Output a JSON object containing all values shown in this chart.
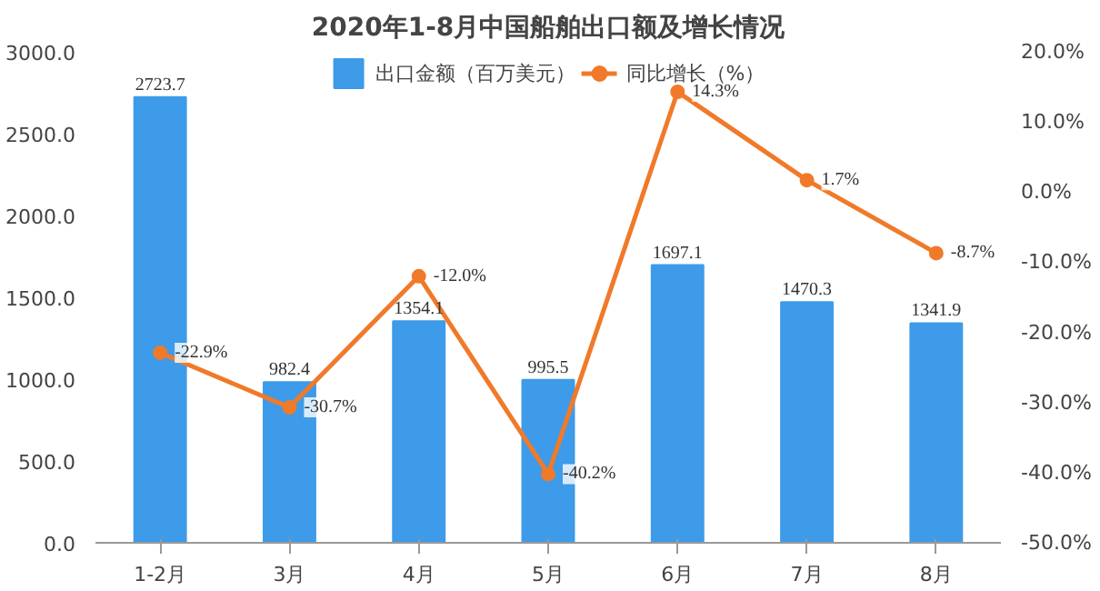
{
  "chart_data": {
    "type": "bar",
    "title": "2020年1-8月中国船舶出口额及增长情况",
    "categories": [
      "1-2月",
      "3月",
      "4月",
      "5月",
      "6月",
      "7月",
      "8月"
    ],
    "series": [
      {
        "name": "出口金额（百万美元）",
        "color": "#3d9be9",
        "values": [
          2723.7,
          982.4,
          1354.1,
          995.5,
          1697.1,
          1470.3,
          1341.9
        ],
        "value_labels": [
          "2723.7",
          "982.4",
          "1354.1",
          "995.5",
          "1697.1",
          "1470.3",
          "1341.9"
        ]
      },
      {
        "name": "同比增长（%）",
        "type": "line",
        "axis": "y2",
        "color": "#f07a2a",
        "values": [
          -22.9,
          -30.7,
          -12.0,
          -40.2,
          14.3,
          1.7,
          -8.7
        ],
        "value_labels": [
          "-22.9%",
          "-30.7%",
          "-12.0%",
          "-40.2%",
          "14.3%",
          "1.7%",
          "-8.7%"
        ]
      }
    ],
    "ylim": [
      0,
      3000
    ],
    "yticks": [
      {
        "value": 0,
        "label": "0.0"
      },
      {
        "value": 500,
        "label": "500.0"
      },
      {
        "value": 1000,
        "label": "1000.0"
      },
      {
        "value": 1500,
        "label": "1500.0"
      },
      {
        "value": 2000,
        "label": "2000.0"
      },
      {
        "value": 2500,
        "label": "2500.0"
      },
      {
        "value": 3000,
        "label": "3000.0"
      }
    ],
    "y2lim": [
      -50,
      20
    ],
    "y2ticks": [
      {
        "value": -50,
        "label": "-50.0%"
      },
      {
        "value": -40,
        "label": "-40.0%"
      },
      {
        "value": -30,
        "label": "-30.0%"
      },
      {
        "value": -20,
        "label": "-20.0%"
      },
      {
        "value": -10,
        "label": "-10.0%"
      },
      {
        "value": 0,
        "label": "0.0%"
      },
      {
        "value": 10,
        "label": "10.0%"
      },
      {
        "value": 20,
        "label": "20.0%"
      }
    ],
    "legend": "top",
    "grid": false,
    "marker": "circle",
    "line_style": "solid"
  }
}
